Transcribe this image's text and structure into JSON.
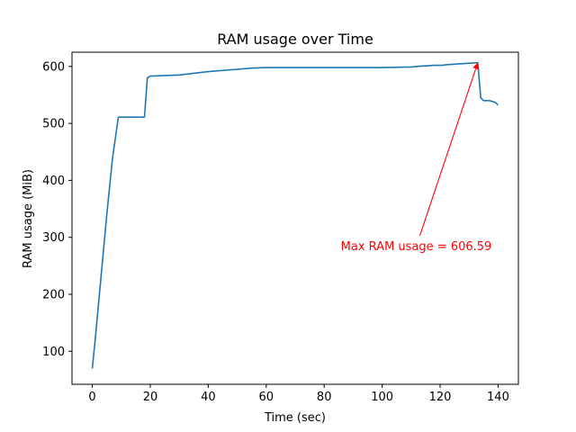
{
  "chart_data": {
    "type": "line",
    "title": "RAM usage over Time",
    "xlabel": "Time (sec)",
    "ylabel": "RAM usage (MiB)",
    "xlim": [
      -7,
      147
    ],
    "ylim": [
      42,
      625
    ],
    "x_ticks": [
      0,
      20,
      40,
      60,
      80,
      100,
      120,
      140
    ],
    "y_ticks": [
      100,
      200,
      300,
      400,
      500,
      600
    ],
    "grid": false,
    "series": [
      {
        "color": "#1f77b4",
        "x": [
          0,
          1,
          3,
          5,
          7,
          9,
          10,
          12,
          14,
          16,
          18,
          19,
          20,
          25,
          30,
          35,
          40,
          45,
          50,
          55,
          60,
          70,
          80,
          90,
          100,
          110,
          112,
          115,
          118,
          121,
          122,
          125,
          128,
          131,
          133,
          134,
          135,
          137,
          139,
          140
        ],
        "y": [
          70,
          120,
          230,
          340,
          440,
          511,
          511,
          511,
          511,
          511,
          511,
          580,
          583,
          584,
          585,
          588,
          591,
          593,
          595,
          597,
          598,
          598,
          598,
          598,
          598,
          599,
          600,
          601,
          602,
          602,
          603,
          604,
          605,
          606,
          606.59,
          545,
          540,
          540,
          537,
          532
        ]
      }
    ],
    "annotation": {
      "text": "Max RAM usage = 606.59",
      "color": "#ff0000",
      "point": [
        133,
        606.59
      ],
      "text_anchor": [
        113,
        303
      ]
    }
  }
}
